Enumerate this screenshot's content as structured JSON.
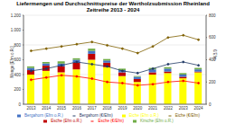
{
  "chart_data": {
    "type": "bar",
    "title": "Liefermengen und Durchschnittspreise der Wertholzsubmission Rheinland",
    "subtitle": "Zeitreihe 2013 - 2024",
    "categories": [
      "2013",
      "2014",
      "2015",
      "2016",
      "2017",
      "2018",
      "2019",
      "2020",
      "2021",
      "2022",
      "2023",
      "2024"
    ],
    "stacked": true,
    "grid": true,
    "legend": "bottom",
    "y_label": "Menge [Efm o.R.]",
    "y2_label": "€/Efm",
    "ylim": [
      0,
      1200
    ],
    "yticks": [
      0,
      200,
      400,
      600,
      800,
      {
        "value": 1000,
        "label": "1.000"
      },
      {
        "value": 1200,
        "label": "1.200"
      }
    ],
    "y2lim": [
      0,
      800
    ],
    "y2ticks": [
      0,
      200,
      400,
      600,
      800
    ],
    "series": [
      {
        "name": "Eiche (Efm o.R.)",
        "type": "bar",
        "color": "#ffff00",
        "values": [
          400,
          450,
          430,
          470,
          600,
          500,
          380,
          300,
          400,
          420,
          350,
          430
        ]
      },
      {
        "name": "Esche (Efm o.R.)",
        "type": "bar",
        "color": "#c00000",
        "values": [
          60,
          70,
          80,
          90,
          80,
          60,
          50,
          40,
          30,
          20,
          20,
          10
        ]
      },
      {
        "name": "Bergahorn (Efm o.R.)",
        "type": "bar",
        "color": "#4472c4",
        "values": [
          30,
          30,
          40,
          40,
          40,
          30,
          30,
          30,
          40,
          40,
          30,
          30
        ]
      },
      {
        "name": "Kirsche (Efm o.R.)",
        "type": "bar",
        "color": "#70ad47",
        "values": [
          20,
          20,
          30,
          20,
          30,
          20,
          20,
          10,
          20,
          20,
          20,
          20
        ]
      },
      {
        "name": "Eiche (€/Efm)",
        "type": "line",
        "axis": "y2",
        "color": "#7f6000",
        "marker": "circle",
        "values": [
          480,
          500,
          520,
          540,
          560,
          530,
          500,
          460,
          520,
          600,
          620,
          580
        ]
      },
      {
        "name": "Esche (€/Efm)",
        "type": "line",
        "axis": "y2",
        "color": "#ff0000",
        "marker": "circle",
        "values": [
          220,
          240,
          260,
          250,
          230,
          200,
          190,
          170,
          180,
          200,
          210,
          190
        ]
      },
      {
        "name": "Bergahorn (€/Efm)",
        "type": "line",
        "axis": "y2",
        "color": "#1f3864",
        "marker": "circle",
        "values": [
          300,
          320,
          350,
          380,
          360,
          340,
          300,
          280,
          320,
          360,
          380,
          350
        ]
      }
    ]
  }
}
